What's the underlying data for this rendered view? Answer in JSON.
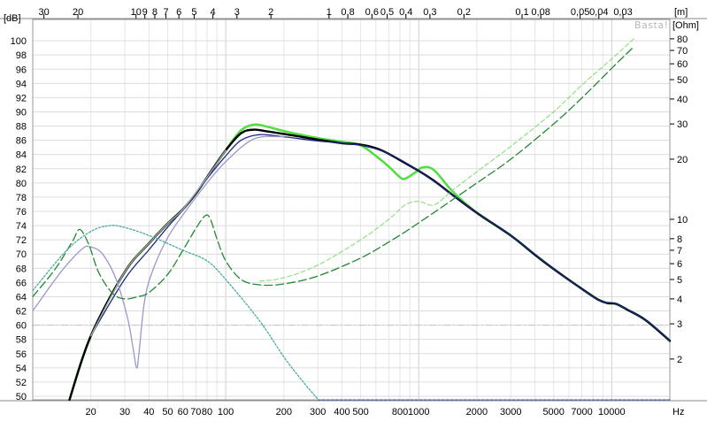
{
  "chart_data": {
    "type": "line",
    "title": "",
    "watermark": "Basta!",
    "xlabel": "Hz",
    "ylabel_left": "[dB]",
    "ylabel_right": "[Ohm]",
    "top_axis_label": "[m]",
    "x_scale": "log",
    "xlim": [
      10,
      20000
    ],
    "ylim": [
      49.5,
      103
    ],
    "y2_scale": "log",
    "y2lim": [
      1.25,
      100
    ],
    "grid": true,
    "x_ticks": [
      {
        "v": 20,
        "label": "20"
      },
      {
        "v": 30,
        "label": "30"
      },
      {
        "v": 40,
        "label": "40"
      },
      {
        "v": 50,
        "label": "50"
      },
      {
        "v": 60,
        "label": "60"
      },
      {
        "v": 70,
        "label": "70"
      },
      {
        "v": 80,
        "label": "80"
      },
      {
        "v": 100,
        "label": "100"
      },
      {
        "v": 200,
        "label": "200"
      },
      {
        "v": 300,
        "label": "300"
      },
      {
        "v": 400,
        "label": "400"
      },
      {
        "v": 500,
        "label": "500"
      },
      {
        "v": 800,
        "label": "800"
      },
      {
        "v": 1000,
        "label": "1000"
      },
      {
        "v": 2000,
        "label": "2000"
      },
      {
        "v": 3000,
        "label": "3000"
      },
      {
        "v": 5000,
        "label": "5000"
      },
      {
        "v": 7000,
        "label": "7000"
      },
      {
        "v": 10000,
        "label": "10000"
      }
    ],
    "top_ticks": [
      {
        "label": "30",
        "f": 11.43
      },
      {
        "label": "20",
        "f": 17.15
      },
      {
        "label": "10",
        "f": 34.3
      },
      {
        "label": "9",
        "f": 38.1
      },
      {
        "label": "8",
        "f": 42.9
      },
      {
        "label": "7",
        "f": 49.0
      },
      {
        "label": "6",
        "f": 57.2
      },
      {
        "label": "5",
        "f": 68.6
      },
      {
        "label": "4",
        "f": 85.8
      },
      {
        "label": "3",
        "f": 114.3
      },
      {
        "label": "2",
        "f": 171.5
      },
      {
        "label": "1",
        "f": 343
      },
      {
        "label": "0,8",
        "f": 429
      },
      {
        "label": "0,6",
        "f": 572
      },
      {
        "label": "0,5",
        "f": 686
      },
      {
        "label": "0,4",
        "f": 858
      },
      {
        "label": "0,3",
        "f": 1143
      },
      {
        "label": "0,2",
        "f": 1715
      },
      {
        "label": "0,1",
        "f": 3430
      },
      {
        "label": "0,08",
        "f": 4288
      },
      {
        "label": "0,05",
        "f": 6860
      },
      {
        "label": "0,04",
        "f": 8575
      },
      {
        "label": "0,03",
        "f": 11433
      }
    ],
    "y_ticks": [
      50,
      52,
      54,
      56,
      58,
      60,
      62,
      64,
      66,
      68,
      70,
      72,
      74,
      76,
      78,
      80,
      82,
      84,
      86,
      88,
      90,
      92,
      94,
      96,
      98,
      100
    ],
    "y2_ticks": [
      2,
      3,
      4,
      5,
      6,
      7,
      8,
      10,
      20,
      30,
      40,
      50,
      60,
      70,
      80
    ],
    "series": [
      {
        "axis": "left",
        "color": "#55dd44",
        "width": 2.6,
        "dash": "",
        "points": [
          [
            15.5,
            49.5
          ],
          [
            20,
            58.5
          ],
          [
            30,
            67.5
          ],
          [
            40,
            71.5
          ],
          [
            50,
            74.3
          ],
          [
            60,
            76.3
          ],
          [
            70,
            78.5
          ],
          [
            80,
            80.8
          ],
          [
            100,
            84.6
          ],
          [
            120,
            87.4
          ],
          [
            140,
            88.2
          ],
          [
            160,
            88.0
          ],
          [
            200,
            87.3
          ],
          [
            300,
            86.3
          ],
          [
            400,
            85.8
          ],
          [
            500,
            85.3
          ],
          [
            600,
            83.8
          ],
          [
            700,
            82.3
          ],
          [
            800,
            80.8
          ],
          [
            850,
            80.6
          ],
          [
            950,
            81.4
          ],
          [
            1050,
            82.2
          ],
          [
            1200,
            81.8
          ],
          [
            1500,
            78.8
          ],
          [
            2000,
            75.8
          ],
          [
            3000,
            72.6
          ],
          [
            4000,
            69.9
          ],
          [
            5000,
            67.9
          ],
          [
            7000,
            65.1
          ],
          [
            8500,
            63.6
          ],
          [
            9500,
            63.1
          ],
          [
            10500,
            63.0
          ],
          [
            12000,
            62.2
          ],
          [
            15000,
            60.7
          ],
          [
            20000,
            57.8
          ]
        ]
      },
      {
        "axis": "left",
        "color": "#000000",
        "width": 2.4,
        "dash": "",
        "points": [
          [
            15.5,
            49.5
          ],
          [
            20,
            58.5
          ],
          [
            30,
            67.5
          ],
          [
            40,
            71.5
          ],
          [
            50,
            74.3
          ],
          [
            60,
            76.3
          ],
          [
            70,
            78.5
          ],
          [
            80,
            80.8
          ],
          [
            100,
            84.6
          ],
          [
            120,
            87.0
          ],
          [
            140,
            87.5
          ],
          [
            160,
            87.3
          ],
          [
            200,
            86.9
          ],
          [
            300,
            86.1
          ],
          [
            400,
            85.6
          ],
          [
            500,
            85.4
          ],
          [
            600,
            84.9
          ],
          [
            700,
            84.1
          ],
          [
            800,
            83.2
          ],
          [
            1000,
            81.7
          ],
          [
            1200,
            80.3
          ],
          [
            1500,
            78.3
          ],
          [
            2000,
            75.8
          ],
          [
            3000,
            72.6
          ],
          [
            4000,
            69.9
          ],
          [
            5000,
            67.9
          ],
          [
            7000,
            65.1
          ],
          [
            8500,
            63.6
          ],
          [
            9500,
            63.1
          ],
          [
            10500,
            63.0
          ],
          [
            12000,
            62.2
          ],
          [
            15000,
            60.7
          ],
          [
            20000,
            57.8
          ]
        ]
      },
      {
        "axis": "left",
        "color": "#1c2a80",
        "width": 1.3,
        "dash": "",
        "points": [
          [
            20,
            58.5
          ],
          [
            30,
            66.5
          ],
          [
            40,
            70.6
          ],
          [
            50,
            73.8
          ],
          [
            60,
            76.2
          ],
          [
            70,
            78.5
          ],
          [
            80,
            80.6
          ],
          [
            100,
            83.8
          ],
          [
            120,
            86.0
          ],
          [
            150,
            86.8
          ],
          [
            200,
            86.5
          ],
          [
            300,
            85.9
          ],
          [
            500,
            85.3
          ],
          [
            700,
            84.1
          ],
          [
            1000,
            81.7
          ],
          [
            1500,
            78.3
          ],
          [
            2000,
            75.8
          ],
          [
            3000,
            72.6
          ],
          [
            5000,
            67.9
          ],
          [
            8500,
            63.6
          ],
          [
            10500,
            63.0
          ],
          [
            15000,
            60.7
          ],
          [
            20000,
            57.8
          ]
        ]
      },
      {
        "axis": "left",
        "color": "#9999cc",
        "width": 1.3,
        "dash": "",
        "points": [
          [
            10,
            62.0
          ],
          [
            14,
            67.5
          ],
          [
            18,
            70.7
          ],
          [
            20,
            71.0
          ],
          [
            23,
            70.0
          ],
          [
            27,
            66.5
          ],
          [
            31,
            61.0
          ],
          [
            33,
            57.0
          ],
          [
            34.5,
            54.0
          ],
          [
            35.5,
            56.0
          ],
          [
            38,
            63.5
          ],
          [
            42,
            67.8
          ],
          [
            50,
            72.3
          ],
          [
            60,
            75.5
          ],
          [
            80,
            80.0
          ],
          [
            100,
            83.0
          ],
          [
            140,
            86.2
          ],
          [
            200,
            86.5
          ]
        ]
      },
      {
        "axis": "left",
        "color": "#aaaaaa",
        "width": 1.4,
        "dash": "",
        "points": [
          [
            20,
            58.5
          ],
          [
            30,
            67.5
          ],
          [
            40,
            71.5
          ],
          [
            50,
            74.3
          ],
          [
            60,
            76.3
          ],
          [
            80,
            80.8
          ],
          [
            100,
            84.6
          ]
        ]
      },
      {
        "axis": "right",
        "color": "#228833",
        "width": 1.3,
        "dash": "9,4",
        "points": [
          [
            10,
            4.1
          ],
          [
            13,
            5.6
          ],
          [
            16,
            7.7
          ],
          [
            17.5,
            8.9
          ],
          [
            19.5,
            7.5
          ],
          [
            22,
            5.4
          ],
          [
            26,
            4.25
          ],
          [
            30,
            4.0
          ],
          [
            35,
            4.1
          ],
          [
            40,
            4.3
          ],
          [
            50,
            5.3
          ],
          [
            60,
            7.0
          ],
          [
            70,
            9.0
          ],
          [
            78,
            10.4
          ],
          [
            83,
            10.1
          ],
          [
            90,
            8.0
          ],
          [
            100,
            6.2
          ],
          [
            120,
            5.0
          ],
          [
            150,
            4.7
          ],
          [
            200,
            4.75
          ],
          [
            300,
            5.2
          ],
          [
            500,
            6.4
          ],
          [
            700,
            7.7
          ],
          [
            1000,
            9.6
          ],
          [
            2000,
            15.2
          ],
          [
            3000,
            20.0
          ],
          [
            5000,
            30.0
          ],
          [
            7000,
            40.5
          ],
          [
            10000,
            57.0
          ],
          [
            13000,
            73.0
          ]
        ]
      },
      {
        "axis": "right",
        "color": "#88dd77",
        "width": 1.1,
        "dash": "5,3",
        "points": [
          [
            150,
            4.9
          ],
          [
            200,
            5.1
          ],
          [
            300,
            5.9
          ],
          [
            500,
            7.9
          ],
          [
            700,
            10.0
          ],
          [
            850,
            11.8
          ],
          [
            1000,
            12.3
          ],
          [
            1200,
            11.8
          ],
          [
            1500,
            14.0
          ],
          [
            2000,
            17.3
          ],
          [
            3000,
            23.2
          ],
          [
            5000,
            34.5
          ],
          [
            7000,
            47.0
          ],
          [
            10000,
            63.5
          ],
          [
            13000,
            80.0
          ]
        ]
      },
      {
        "axis": "right",
        "color": "#2244aa",
        "width": 1.1,
        "dash": "2,2",
        "points": [
          [
            10,
            4.4
          ],
          [
            15,
            7.0
          ],
          [
            20,
            8.7
          ],
          [
            25,
            9.3
          ],
          [
            30,
            9.1
          ],
          [
            40,
            8.3
          ],
          [
            60,
            7.0
          ],
          [
            80,
            6.2
          ],
          [
            100,
            5.0
          ],
          [
            150,
            3.1
          ],
          [
            200,
            2.05
          ],
          [
            250,
            1.55
          ],
          [
            300,
            1.26
          ]
        ]
      },
      {
        "axis": "right",
        "color": "#44bb99",
        "width": 1.1,
        "dash": "2,2",
        "points": [
          [
            10,
            4.4
          ],
          [
            15,
            7.0
          ],
          [
            20,
            8.7
          ],
          [
            25,
            9.3
          ],
          [
            30,
            9.1
          ],
          [
            40,
            8.3
          ],
          [
            60,
            7.0
          ],
          [
            80,
            6.2
          ],
          [
            100,
            5.0
          ],
          [
            150,
            3.1
          ],
          [
            200,
            2.05
          ],
          [
            250,
            1.55
          ],
          [
            300,
            1.26
          ]
        ]
      },
      {
        "axis": "left",
        "color": "#3355aa",
        "width": 1.0,
        "dash": "3,2",
        "points": [
          [
            300,
            49.5
          ],
          [
            20000,
            49.5
          ]
        ]
      }
    ]
  }
}
